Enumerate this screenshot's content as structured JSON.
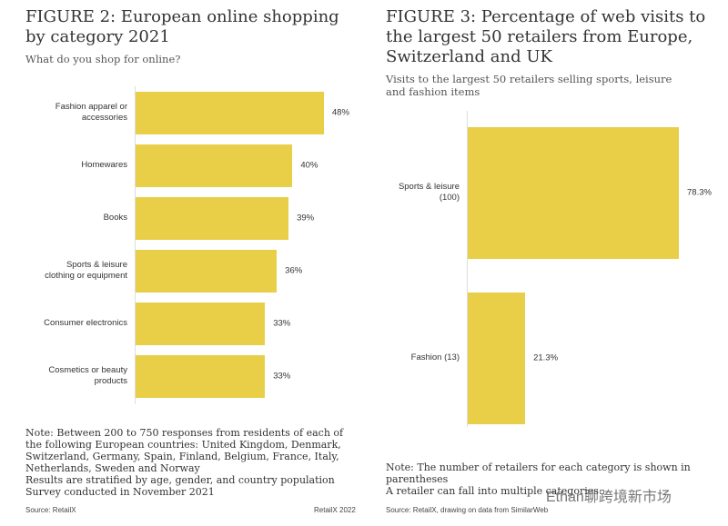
{
  "chart_data": [
    {
      "type": "bar",
      "orientation": "horizontal",
      "color": "#e8cf47",
      "title": "FIGURE 2: European online shopping by category 2021",
      "subtitle": "What do you shop for online?",
      "categories": [
        "Fashion apparel or\naccessories",
        "Homewares",
        "Books",
        "Sports & leisure\nclothing or equipment",
        "Consumer electronics",
        "Cosmetics or beauty\nproducts"
      ],
      "values": [
        48,
        40,
        39,
        36,
        33,
        33
      ],
      "value_labels": [
        "48%",
        "40%",
        "39%",
        "36%",
        "33%",
        "33%"
      ],
      "note": "Note: Between 200 to 750 responses from residents of each of the following European countries: United Kingdom, Denmark, Switzerland, Germany, Spain, Finland, Belgium, France, Italy, Netherlands, Sweden and Norway\nResults are stratified by age, gender, and country population\nSurvey conducted in November 2021",
      "source": "Source: RetailX",
      "brand": "RetailX 2022"
    },
    {
      "type": "bar",
      "orientation": "horizontal",
      "color": "#e8cf47",
      "title": "FIGURE 3: Percentage of web visits to the largest 50 retailers from Europe, Switzerland and UK",
      "subtitle": "Visits to the largest 50 retailers selling sports, leisure and fashion items",
      "categories": [
        "Sports & leisure\n(100)",
        "Fashion (13)"
      ],
      "values": [
        78.3,
        21.3
      ],
      "value_labels": [
        "78.3%",
        "21.3%"
      ],
      "note": "Note: The number of retailers for each category is shown in parentheses\nA retailer can fall into multiple categories",
      "source": "Source: RetailX, drawing on data from SimilarWeb",
      "watermark": "Ethan聊跨境新市场"
    }
  ]
}
